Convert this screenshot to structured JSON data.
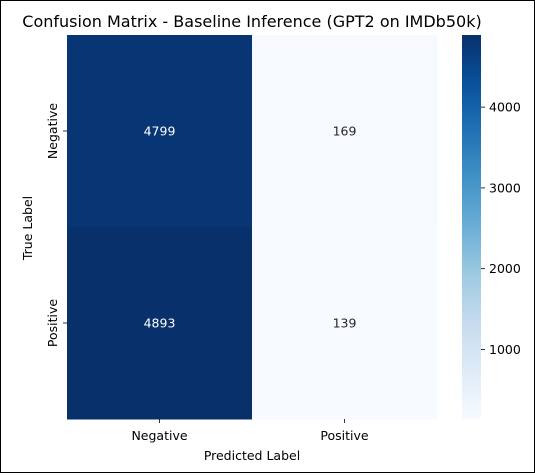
{
  "chart_data": {
    "type": "heatmap",
    "title": "Confusion Matrix - Baseline Inference (GPT2 on IMDb50k)",
    "xlabel": "Predicted Label",
    "ylabel": "True Label",
    "x_categories": [
      "Negative",
      "Positive"
    ],
    "y_categories": [
      "Negative",
      "Positive"
    ],
    "values": [
      [
        4799,
        169
      ],
      [
        4893,
        139
      ]
    ],
    "colormap": "Blues",
    "colorbar": {
      "min": 139,
      "max": 4893,
      "ticks": [
        1000,
        2000,
        3000,
        4000
      ]
    }
  }
}
